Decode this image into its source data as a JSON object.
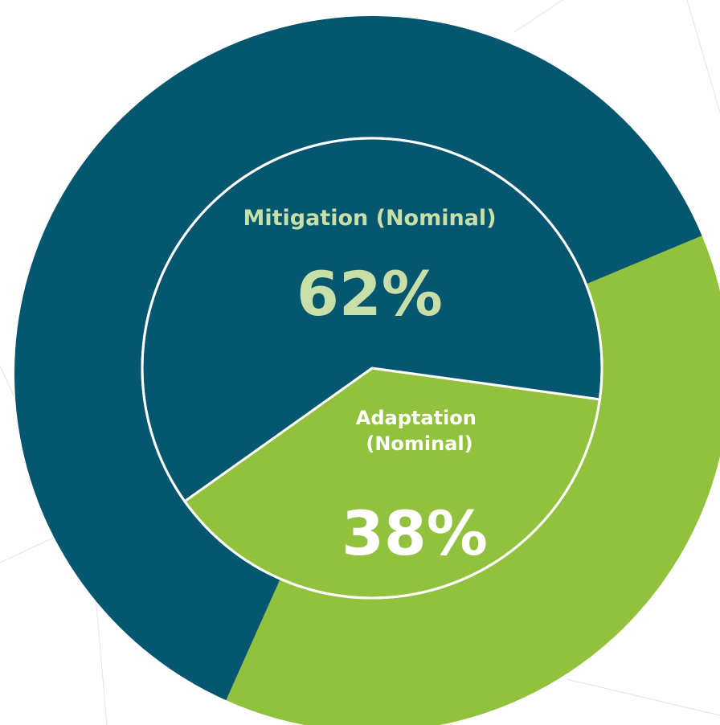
{
  "chart_data": {
    "type": "pie",
    "slices": [
      {
        "label": "Mitigation (Nominal)",
        "label_lines": [
          "Mitigation (Nominal)"
        ],
        "value": 62,
        "display": "62%",
        "color": "#05576F",
        "label_color": "#C8E0A8"
      },
      {
        "label": "Adaptation (Nominal)",
        "label_lines": [
          "Adaptation",
          "(Nominal)"
        ],
        "value": 38,
        "display": "38%",
        "color": "#92C13E",
        "label_color": "#FFFFFF"
      }
    ]
  }
}
